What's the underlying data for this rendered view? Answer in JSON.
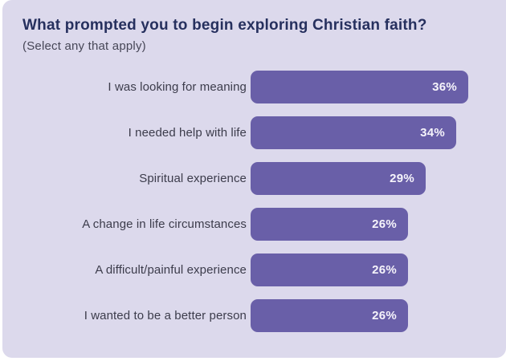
{
  "header": {
    "title": "What prompted you to begin exploring Christian faith?",
    "subtitle": "(Select any that apply)"
  },
  "chart_data": {
    "type": "bar",
    "orientation": "horizontal",
    "title": "What prompted you to begin exploring Christian faith?",
    "subtitle": "(Select any that apply)",
    "categories": [
      "I was looking for meaning",
      "I needed help with life",
      "Spiritual experience",
      "A change in life circumstances",
      "A difficult/painful experience",
      "I wanted to be a better person"
    ],
    "values": [
      36,
      34,
      29,
      26,
      26,
      26
    ],
    "value_labels": [
      "36%",
      "34%",
      "29%",
      "26%",
      "26%",
      "26%"
    ],
    "unit": "%",
    "xlim": [
      0,
      36
    ],
    "grid": false,
    "legend": false,
    "bar_color": "#695fa8",
    "value_label_color": "#f6f4fb",
    "category_label_color": "#3c3c4b",
    "background_color": "#dcd9ec"
  },
  "colors": {
    "page_bg": "#ffffff",
    "card_bg": "#dcd9ec",
    "title": "#26305e",
    "subtitle": "#474757"
  }
}
